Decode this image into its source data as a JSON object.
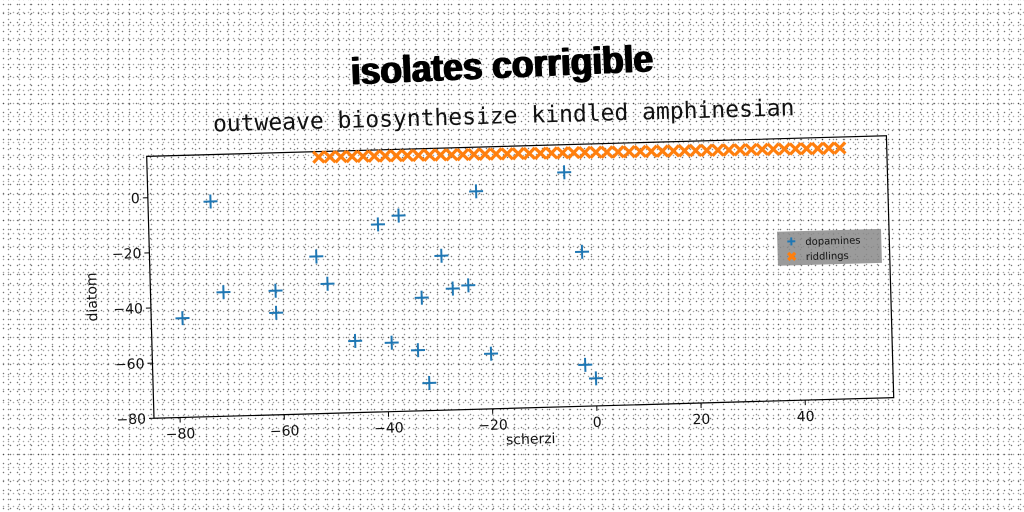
{
  "title": "isolates corrigible",
  "chart_data": {
    "type": "scatter",
    "title": "outweave biosynthesize kindled amphinesian",
    "xlabel": "scherzi",
    "ylabel": "diatom",
    "xlim": [
      -85,
      57
    ],
    "ylim": [
      -80,
      15
    ],
    "xticks": [
      -80,
      -60,
      -40,
      -20,
      0,
      20,
      40
    ],
    "yticks": [
      -80,
      -60,
      -40,
      -20,
      0
    ],
    "grid": false,
    "legend": "right",
    "series": [
      {
        "name": "dopamines",
        "marker": "plus",
        "color": "#1f77b4",
        "points": [
          [
            -73,
            -2
          ],
          [
            -71,
            -35
          ],
          [
            -79,
            -44
          ],
          [
            -61,
            -35
          ],
          [
            -61,
            -43
          ],
          [
            -53,
            -23
          ],
          [
            -51,
            -33
          ],
          [
            -46,
            -54
          ],
          [
            -41,
            -12
          ],
          [
            -37,
            -9
          ],
          [
            -39,
            -55
          ],
          [
            -34,
            -58
          ],
          [
            -33,
            -39
          ],
          [
            -32,
            -70
          ],
          [
            -29,
            -24
          ],
          [
            -27,
            -36
          ],
          [
            -24,
            -35
          ],
          [
            -22,
            -1
          ],
          [
            -20,
            -60
          ],
          [
            -5,
            5
          ],
          [
            -2,
            -24
          ],
          [
            -2,
            -65
          ],
          [
            0,
            -70
          ]
        ]
      },
      {
        "name": "riddlings",
        "marker": "x",
        "color": "#ff7f0e",
        "x_start": -52,
        "x_end": 48,
        "count": 48,
        "y_start": 13,
        "y_end": 11
      }
    ]
  }
}
